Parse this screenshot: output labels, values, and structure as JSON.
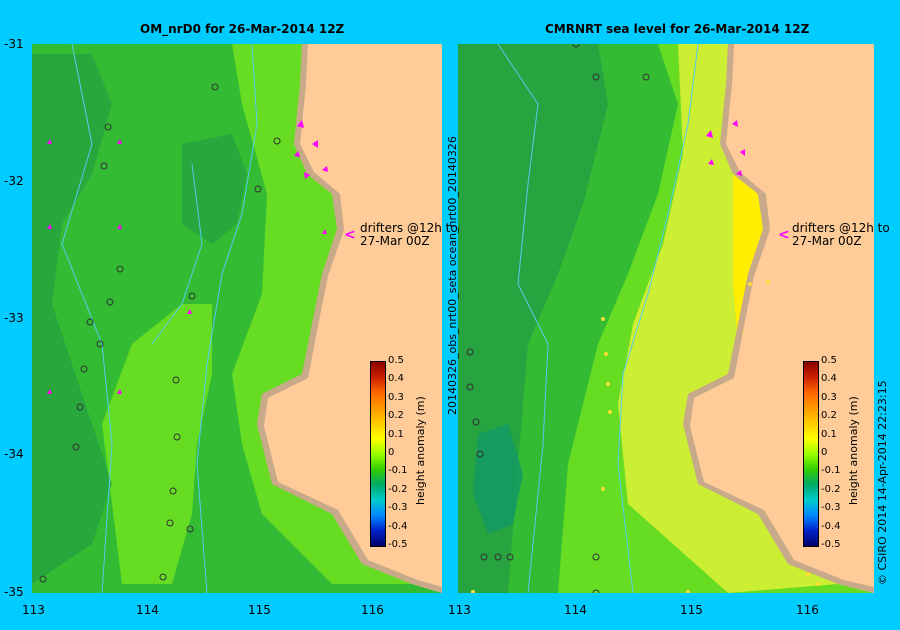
{
  "left_panel": {
    "title": "OM_nrD0 for 26-Mar-2014 12Z",
    "drifters_note_line1": "drifters @12h to",
    "drifters_note_line2": "27-Mar 00Z"
  },
  "right_panel": {
    "title": "CMRNRT sea level  for 26-Mar-2014 12Z",
    "drifters_note_line1": "drifters @12h to",
    "drifters_note_line2": "27-Mar 00Z",
    "side_label": "20140326_obs_nrt00_seta            ocean_nrt00_20140326"
  },
  "colorbar": {
    "title": "height anomaly (m)",
    "labels": [
      "0.5",
      "0.4",
      "0.3",
      "0.2",
      "0.1",
      "0",
      "-0.1",
      "-0.2",
      "-0.3",
      "-0.4",
      "-0.5"
    ],
    "colors": [
      "#8b0000",
      "#cc2200",
      "#ff6600",
      "#ff9900",
      "#ffcc00",
      "#ffff00",
      "#99ff00",
      "#33cc00",
      "#00aa66",
      "#00cccc",
      "#0088ff",
      "#0022cc",
      "#000066"
    ]
  },
  "y_ticks": [
    "-31",
    "-32",
    "-33",
    "-34",
    "-35"
  ],
  "x_ticks": [
    "113",
    "114",
    "115",
    "116"
  ],
  "footer": "© CSIRO 2014   14-Apr-2014 22:23:15",
  "colors": {
    "background": "#00ccff",
    "land": "#ffcc99",
    "coast": "#c8a98a",
    "green_dark": "#229944",
    "green_mid": "#33bb33",
    "green_light": "#66dd22",
    "yellow_green": "#ccee33",
    "yellow": "#ffee00",
    "drifter": "#ff00ff",
    "bathymetry": "#55ccee"
  }
}
